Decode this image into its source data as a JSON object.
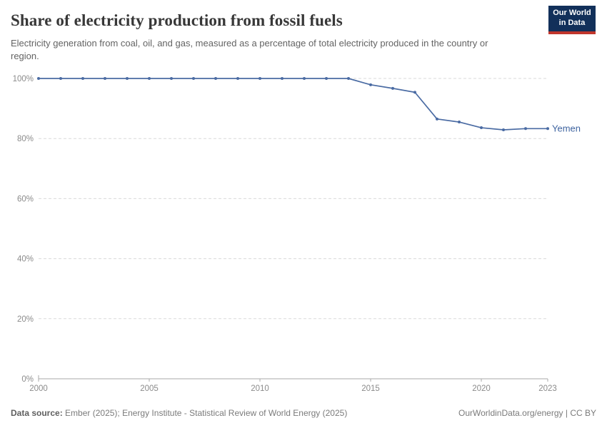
{
  "header": {
    "title": "Share of electricity production from fossil fuels",
    "subtitle": "Electricity generation from coal, oil, and gas, measured as a percentage of total electricity produced in the country or region.",
    "logo": {
      "line1": "Our World",
      "line2": "in Data",
      "bg_color": "#12305a",
      "accent_color": "#c0362c"
    }
  },
  "footer": {
    "source_label": "Data source:",
    "source_text": "Ember (2025); Energy Institute - Statistical Review of World Energy (2025)",
    "credit": "OurWorldinData.org/energy | CC BY"
  },
  "chart_data": {
    "type": "line",
    "title": "Share of electricity production from fossil fuels",
    "unit": "%",
    "x": [
      2000,
      2001,
      2002,
      2003,
      2004,
      2005,
      2006,
      2007,
      2008,
      2009,
      2010,
      2011,
      2012,
      2013,
      2014,
      2015,
      2016,
      2017,
      2018,
      2019,
      2020,
      2021,
      2022,
      2023
    ],
    "series": [
      {
        "name": "Yemen",
        "color": "#4a6ba3",
        "label_color": "#3f64a0",
        "values": [
          100,
          100,
          100,
          100,
          100,
          100,
          100,
          100,
          100,
          100,
          100,
          100,
          100,
          100,
          100,
          97.9,
          96.7,
          95.4,
          86.5,
          85.5,
          83.6,
          82.9,
          83.3,
          83.3
        ]
      }
    ],
    "ylim": [
      0,
      100
    ],
    "yticks": [
      0,
      20,
      40,
      60,
      80,
      100
    ],
    "ytick_suffix": "%",
    "xticks": [
      2000,
      2005,
      2010,
      2015,
      2020,
      2023
    ],
    "grid": "dashed horizontal",
    "legend_position": "end-of-line label",
    "axis_color": "#a8a8a8",
    "grid_color": "#d9d9d9",
    "tick_label_color": "#8b8b8b"
  }
}
